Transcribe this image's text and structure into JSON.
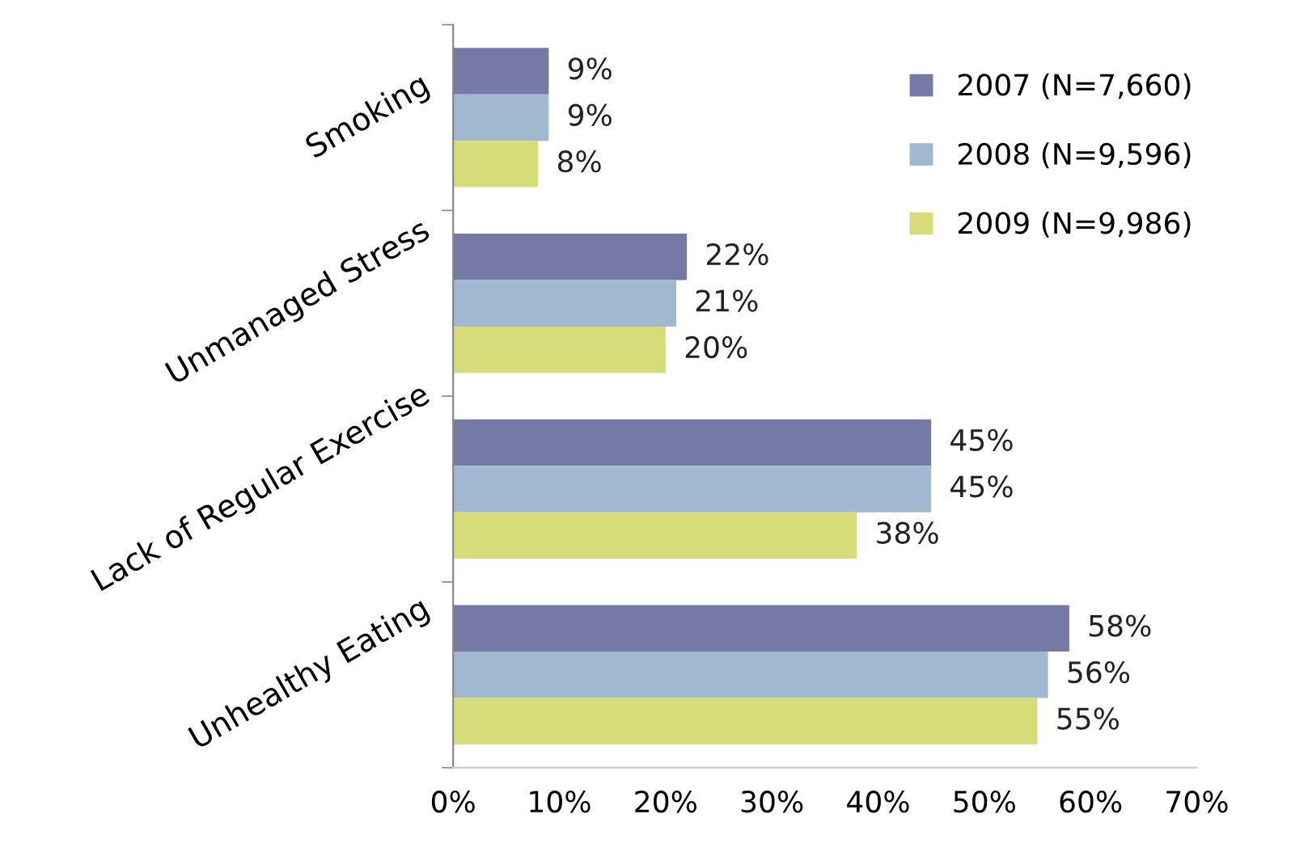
{
  "chart_data": {
    "type": "bar",
    "orientation": "horizontal",
    "categories": [
      "Smoking",
      "Unmanaged Stress",
      "Lack of Regular Exercise",
      "Unhealthy Eating"
    ],
    "series": [
      {
        "name": "2007 (N=7,660)",
        "color": "#7579a5",
        "values": [
          9,
          22,
          45,
          58
        ],
        "value_labels": [
          "9%",
          "22%",
          "45%",
          "58%"
        ]
      },
      {
        "name": "2008 (N=9,596)",
        "color": "#a0b8d0",
        "values": [
          9,
          21,
          45,
          56
        ],
        "value_labels": [
          "9%",
          "21%",
          "45%",
          "56%"
        ]
      },
      {
        "name": "2009 (N=9,986)",
        "color": "#d6dc78",
        "values": [
          8,
          20,
          38,
          55
        ],
        "value_labels": [
          "8%",
          "20%",
          "38%",
          "55%"
        ]
      }
    ],
    "xlim": [
      0,
      70
    ],
    "xticks": [
      {
        "value": 0,
        "label": "0%"
      },
      {
        "value": 10,
        "label": "10%"
      },
      {
        "value": 20,
        "label": "20%"
      },
      {
        "value": 30,
        "label": "30%"
      },
      {
        "value": 40,
        "label": "40%"
      },
      {
        "value": 50,
        "label": "50%"
      },
      {
        "value": 60,
        "label": "60%"
      },
      {
        "value": 70,
        "label": "70%"
      }
    ],
    "legend": "top right",
    "grid": false
  }
}
